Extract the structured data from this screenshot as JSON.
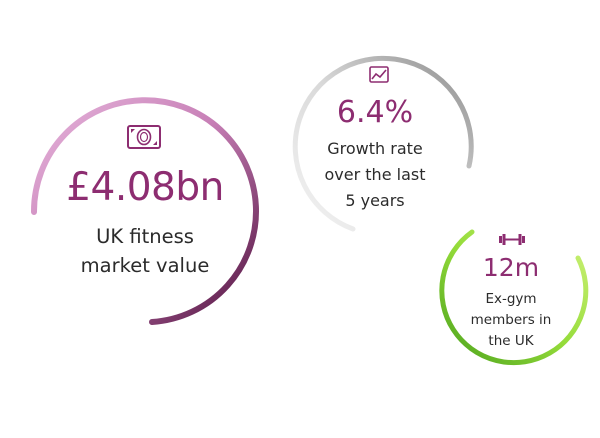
{
  "stats": [
    {
      "id": "market",
      "value": "£4.08bn",
      "label_lines": [
        "UK fitness",
        "market value"
      ],
      "icon": "banknote-icon",
      "ring_color": "#8d2d71"
    },
    {
      "id": "growth",
      "value": "6.4%",
      "label_lines": [
        "Growth rate",
        "over the last",
        "5 years"
      ],
      "icon": "trend-chart-icon",
      "ring_color": "#8a8a8a"
    },
    {
      "id": "exgym",
      "value": "12m",
      "label_lines": [
        "Ex-gym",
        "members in",
        "the UK"
      ],
      "icon": "dumbbell-icon",
      "ring_color": "#6cc22a"
    }
  ],
  "colors": {
    "accent": "#8d2d71",
    "text": "#2b2b2b",
    "ring_purple_light": "#dba7cf",
    "ring_purple_dark": "#5a1346",
    "ring_grey_light": "#f2f2f2",
    "ring_grey_dark": "#8a8a8a",
    "ring_green_light": "#c9f06c",
    "ring_green_dark": "#54a51f"
  }
}
